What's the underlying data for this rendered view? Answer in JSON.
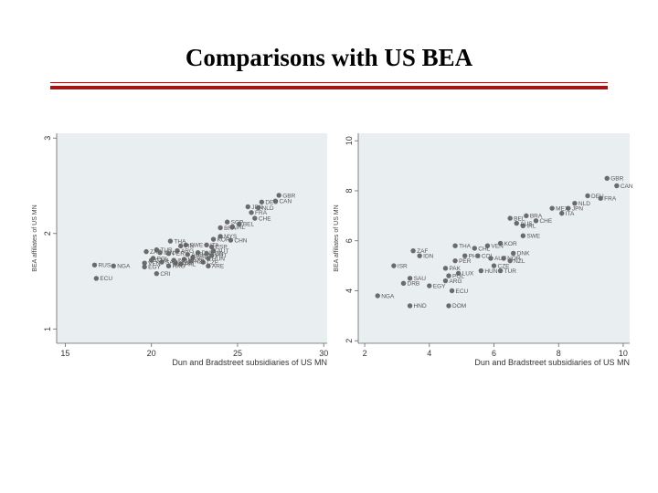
{
  "slide": {
    "title": "Comparisons with US BEA"
  },
  "chart_data": [
    {
      "type": "scatter",
      "title": "",
      "xlabel": "Dun and Bradstreet subsidiaries of US MN",
      "ylabel": "BEA affiliates of US MN",
      "xlim": [
        14.5,
        30.2
      ],
      "ylim": [
        0.85,
        3.05
      ],
      "xticks": [
        15,
        20,
        25,
        30
      ],
      "yticks": [
        1,
        2,
        3
      ],
      "points": [
        {
          "label": "GBR",
          "x": 27.4,
          "y": 2.4
        },
        {
          "label": "CAN",
          "x": 27.2,
          "y": 2.34
        },
        {
          "label": "DEU",
          "x": 26.4,
          "y": 2.33
        },
        {
          "label": "JPN",
          "x": 25.6,
          "y": 2.28
        },
        {
          "label": "NLD",
          "x": 26.2,
          "y": 2.27
        },
        {
          "label": "FRA",
          "x": 25.8,
          "y": 2.22
        },
        {
          "label": "CHE",
          "x": 26.0,
          "y": 2.16
        },
        {
          "label": "SGP",
          "x": 24.4,
          "y": 2.12
        },
        {
          "label": "BEL",
          "x": 25.1,
          "y": 2.1
        },
        {
          "label": "IRL",
          "x": 24.7,
          "y": 2.07
        },
        {
          "label": "BRA",
          "x": 24.0,
          "y": 2.06
        },
        {
          "label": "KOR",
          "x": 23.6,
          "y": 1.94
        },
        {
          "label": "MYS",
          "x": 24.0,
          "y": 1.97
        },
        {
          "label": "CHN",
          "x": 24.6,
          "y": 1.93
        },
        {
          "label": "THA",
          "x": 21.1,
          "y": 1.92
        },
        {
          "label": "SWE",
          "x": 22.0,
          "y": 1.88
        },
        {
          "label": "FIN",
          "x": 21.7,
          "y": 1.87
        },
        {
          "label": "ITA",
          "x": 23.2,
          "y": 1.88
        },
        {
          "label": "ESP",
          "x": 23.5,
          "y": 1.86
        },
        {
          "label": "TUR",
          "x": 20.3,
          "y": 1.83
        },
        {
          "label": "ARG",
          "x": 21.5,
          "y": 1.82
        },
        {
          "label": "ZAF",
          "x": 19.7,
          "y": 1.81
        },
        {
          "label": "IDN",
          "x": 20.5,
          "y": 1.8
        },
        {
          "label": "PER",
          "x": 21.0,
          "y": 1.79
        },
        {
          "label": "DNK",
          "x": 22.7,
          "y": 1.8
        },
        {
          "label": "ISR",
          "x": 22.4,
          "y": 1.75
        },
        {
          "label": "AUS",
          "x": 22.1,
          "y": 1.78
        },
        {
          "label": "AUT",
          "x": 23.6,
          "y": 1.82
        },
        {
          "label": "MEX",
          "x": 21.9,
          "y": 1.73
        },
        {
          "label": "NOR",
          "x": 23.2,
          "y": 1.79
        },
        {
          "label": "PRT",
          "x": 23.5,
          "y": 1.77
        },
        {
          "label": "HUN",
          "x": 23.3,
          "y": 1.74
        },
        {
          "label": "CZE",
          "x": 23.0,
          "y": 1.7
        },
        {
          "label": "NZL",
          "x": 22.3,
          "y": 1.71
        },
        {
          "label": "LUX",
          "x": 21.4,
          "y": 1.69
        },
        {
          "label": "PHL",
          "x": 21.7,
          "y": 1.68
        },
        {
          "label": "SAU",
          "x": 20.6,
          "y": 1.7
        },
        {
          "label": "VEN",
          "x": 19.6,
          "y": 1.69
        },
        {
          "label": "POL",
          "x": 20.1,
          "y": 1.74
        },
        {
          "label": "RUS",
          "x": 16.7,
          "y": 1.67
        },
        {
          "label": "NGA",
          "x": 17.8,
          "y": 1.66
        },
        {
          "label": "EGY",
          "x": 19.6,
          "y": 1.65
        },
        {
          "label": "HKG",
          "x": 21.0,
          "y": 1.66
        },
        {
          "label": "GTM",
          "x": 20.0,
          "y": 1.72
        },
        {
          "label": "IND",
          "x": 21.3,
          "y": 1.72
        },
        {
          "label": "ARE",
          "x": 23.3,
          "y": 1.66
        },
        {
          "label": "ECU",
          "x": 16.8,
          "y": 1.53
        },
        {
          "label": "CRI",
          "x": 20.3,
          "y": 1.58
        }
      ]
    },
    {
      "type": "scatter",
      "title": "",
      "xlabel": "Dun and Bradstreet subsidiaries of US MN",
      "ylabel": "BEA affiliates of US MN",
      "xlim": [
        1.8,
        10.2
      ],
      "ylim": [
        1.9,
        10.3
      ],
      "xticks": [
        2,
        4,
        6,
        8,
        10
      ],
      "yticks": [
        2,
        4,
        6,
        8,
        10
      ],
      "points": [
        {
          "label": "GBR",
          "x": 9.5,
          "y": 8.5
        },
        {
          "label": "CAN",
          "x": 9.8,
          "y": 8.2
        },
        {
          "label": "DEU",
          "x": 8.9,
          "y": 7.8
        },
        {
          "label": "FRA",
          "x": 9.3,
          "y": 7.7
        },
        {
          "label": "NLD",
          "x": 8.5,
          "y": 7.5
        },
        {
          "label": "JPN",
          "x": 8.3,
          "y": 7.3
        },
        {
          "label": "MEX",
          "x": 7.8,
          "y": 7.3
        },
        {
          "label": "ITA",
          "x": 8.1,
          "y": 7.1
        },
        {
          "label": "BRA",
          "x": 7.0,
          "y": 7.0
        },
        {
          "label": "BEL",
          "x": 6.5,
          "y": 6.9
        },
        {
          "label": "CHE",
          "x": 7.3,
          "y": 6.8
        },
        {
          "label": "IRL",
          "x": 6.9,
          "y": 6.6
        },
        {
          "label": "AUS",
          "x": 6.7,
          "y": 6.7
        },
        {
          "label": "SWE",
          "x": 6.9,
          "y": 6.2
        },
        {
          "label": "KOR",
          "x": 6.2,
          "y": 5.9
        },
        {
          "label": "VEN",
          "x": 5.8,
          "y": 5.8
        },
        {
          "label": "CHL",
          "x": 5.4,
          "y": 5.7
        },
        {
          "label": "THA",
          "x": 4.8,
          "y": 5.8
        },
        {
          "label": "ZAF",
          "x": 3.5,
          "y": 5.6
        },
        {
          "label": "IDN",
          "x": 3.7,
          "y": 5.4
        },
        {
          "label": "PHL",
          "x": 5.1,
          "y": 5.4
        },
        {
          "label": "COL",
          "x": 5.5,
          "y": 5.4
        },
        {
          "label": "DNK",
          "x": 6.6,
          "y": 5.5
        },
        {
          "label": "NOR",
          "x": 6.3,
          "y": 5.3
        },
        {
          "label": "NZL",
          "x": 6.5,
          "y": 5.2
        },
        {
          "label": "PER",
          "x": 4.8,
          "y": 5.2
        },
        {
          "label": "AUT",
          "x": 5.9,
          "y": 5.3
        },
        {
          "label": "ISR",
          "x": 2.9,
          "y": 5.0
        },
        {
          "label": "CZE",
          "x": 6.0,
          "y": 5.0
        },
        {
          "label": "PAK",
          "x": 4.5,
          "y": 4.9
        },
        {
          "label": "HUN",
          "x": 5.6,
          "y": 4.8
        },
        {
          "label": "TUR",
          "x": 6.2,
          "y": 4.8
        },
        {
          "label": "LUX",
          "x": 4.9,
          "y": 4.7
        },
        {
          "label": "POL",
          "x": 4.6,
          "y": 4.6
        },
        {
          "label": "SAU",
          "x": 3.4,
          "y": 4.5
        },
        {
          "label": "ARG",
          "x": 4.5,
          "y": 4.4
        },
        {
          "label": "DRB",
          "x": 3.2,
          "y": 4.3
        },
        {
          "label": "EGY",
          "x": 4.0,
          "y": 4.2
        },
        {
          "label": "ECU",
          "x": 4.7,
          "y": 4.0
        },
        {
          "label": "NGA",
          "x": 2.4,
          "y": 3.8
        },
        {
          "label": "HND",
          "x": 3.4,
          "y": 3.4
        },
        {
          "label": "DOM",
          "x": 4.6,
          "y": 3.4
        }
      ]
    }
  ]
}
